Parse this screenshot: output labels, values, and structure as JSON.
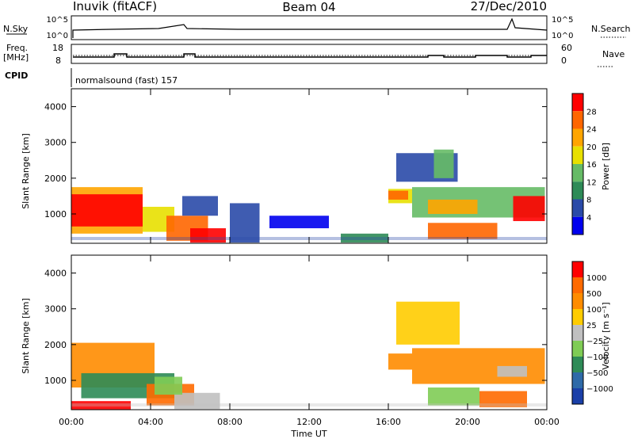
{
  "header": {
    "title": "Inuvik (fitACF)",
    "beam": "Beam 04",
    "date": "27/Dec/2010"
  },
  "top_panels": {
    "nsky_label": "N.Sky",
    "nsearch_label": "N.Search",
    "nsky_ticks": [
      "10^5",
      "10^0"
    ],
    "nsearch_ticks": [
      "10^5",
      "10^0"
    ],
    "freq_label": "Freq.",
    "freq_unit": "[MHz]",
    "freq_ticks": [
      "18",
      "8"
    ],
    "nave_label": "Nave",
    "nave_ticks": [
      "60",
      "0"
    ],
    "cpid_label": "CPID",
    "cpid_text": "normalsound (fast) 157"
  },
  "colors": {
    "power_scale": [
      "#0000ee",
      "#2a4aa8",
      "#2e8b57",
      "#66bb66",
      "#e8e000",
      "#ffa500",
      "#ff6600",
      "#ff0000"
    ],
    "velocity_scale": [
      "#1a3fa8",
      "#2e6aa8",
      "#2e8b57",
      "#7fcc55",
      "#c0c0c0",
      "#ffcc00",
      "#ff8c00",
      "#ff6a00",
      "#ff0000"
    ]
  },
  "chart_data": [
    {
      "type": "heatmap",
      "name": "power",
      "ylabel": "Slant Range [km]",
      "xlabel": "",
      "ylim": [
        180,
        4500
      ],
      "y_ticks": [
        "4000",
        "3000",
        "2000",
        "1000"
      ],
      "x_ticks": [
        "00:00",
        "04:00",
        "08:00",
        "12:00",
        "16:00",
        "20:00",
        "00:00"
      ],
      "colorbar_label": "Power [dB]",
      "colorbar_ticks": [
        "28",
        "24",
        "20",
        "16",
        "12",
        "8",
        "4"
      ],
      "regions": [
        {
          "t0": 0.0,
          "t1": 3.6,
          "r0": 450,
          "r1": 1750,
          "level": 5
        },
        {
          "t0": 0.0,
          "t1": 3.6,
          "r0": 650,
          "r1": 1550,
          "level": 7
        },
        {
          "t0": 3.6,
          "t1": 5.2,
          "r0": 500,
          "r1": 1200,
          "level": 4
        },
        {
          "t0": 4.8,
          "t1": 6.9,
          "r0": 250,
          "r1": 950,
          "level": 6
        },
        {
          "t0": 6.0,
          "t1": 7.8,
          "r0": 200,
          "r1": 600,
          "level": 7
        },
        {
          "t0": 5.6,
          "t1": 7.4,
          "r0": 950,
          "r1": 1500,
          "level": 1
        },
        {
          "t0": 8.0,
          "t1": 9.5,
          "r0": 200,
          "r1": 1300,
          "level": 1
        },
        {
          "t0": 16.0,
          "t1": 17.2,
          "r0": 1300,
          "r1": 1700,
          "level": 4
        },
        {
          "t0": 16.0,
          "t1": 17.0,
          "r0": 1400,
          "r1": 1650,
          "level": 6
        },
        {
          "t0": 17.2,
          "t1": 23.9,
          "r0": 900,
          "r1": 1750,
          "level": 3
        },
        {
          "t0": 18.0,
          "t1": 20.5,
          "r0": 1000,
          "r1": 1400,
          "level": 5
        },
        {
          "t0": 22.3,
          "t1": 23.9,
          "r0": 800,
          "r1": 1500,
          "level": 7
        },
        {
          "t0": 18.0,
          "t1": 21.5,
          "r0": 300,
          "r1": 750,
          "level": 6
        },
        {
          "t0": 16.4,
          "t1": 19.5,
          "r0": 1900,
          "r1": 2700,
          "level": 1
        },
        {
          "t0": 18.3,
          "t1": 19.3,
          "r0": 2000,
          "r1": 2800,
          "level": 3
        },
        {
          "t0": 13.6,
          "t1": 16.0,
          "r0": 200,
          "r1": 450,
          "level": 2
        },
        {
          "t0": 10.0,
          "t1": 13.0,
          "r0": 600,
          "r1": 950,
          "level": 0
        }
      ]
    },
    {
      "type": "heatmap",
      "name": "velocity",
      "ylabel": "Slant Range [km]",
      "xlabel": "Time UT",
      "ylim": [
        180,
        4500
      ],
      "y_ticks": [
        "4000",
        "3000",
        "2000",
        "1000"
      ],
      "x_ticks": [
        "00:00",
        "04:00",
        "08:00",
        "12:00",
        "16:00",
        "20:00",
        "00:00"
      ],
      "colorbar_label": "Velocity [m s⁻¹]",
      "colorbar_ticks": [
        "1000",
        "500",
        "100",
        "25",
        "−25",
        "−100",
        "−500",
        "−1000"
      ],
      "regions": [
        {
          "t0": 0.0,
          "t1": 4.2,
          "r0": 800,
          "r1": 2050,
          "level": 6
        },
        {
          "t0": 0.5,
          "t1": 5.2,
          "r0": 500,
          "r1": 1200,
          "level": 2
        },
        {
          "t0": 3.8,
          "t1": 6.2,
          "r0": 300,
          "r1": 900,
          "level": 7
        },
        {
          "t0": 5.2,
          "t1": 7.5,
          "r0": 200,
          "r1": 650,
          "level": 4
        },
        {
          "t0": 4.2,
          "t1": 5.6,
          "r0": 600,
          "r1": 1100,
          "level": 3
        },
        {
          "t0": 16.0,
          "t1": 17.2,
          "r0": 1300,
          "r1": 1750,
          "level": 6
        },
        {
          "t0": 17.2,
          "t1": 23.9,
          "r0": 900,
          "r1": 1900,
          "level": 6
        },
        {
          "t0": 18.0,
          "t1": 20.6,
          "r0": 300,
          "r1": 800,
          "level": 3
        },
        {
          "t0": 20.6,
          "t1": 23.0,
          "r0": 250,
          "r1": 700,
          "level": 7
        },
        {
          "t0": 16.4,
          "t1": 19.6,
          "r0": 2000,
          "r1": 3200,
          "level": 5
        },
        {
          "t0": 0.0,
          "t1": 3.0,
          "r0": 180,
          "r1": 420,
          "level": 8
        },
        {
          "t0": 21.5,
          "t1": 23.0,
          "r0": 1100,
          "r1": 1400,
          "level": 4
        }
      ]
    }
  ]
}
